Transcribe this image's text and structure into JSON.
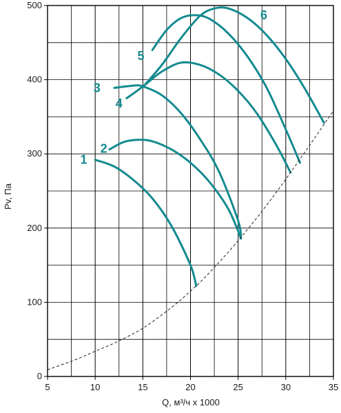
{
  "chart_data": {
    "type": "line",
    "xlabel": "Q, м³/ч х 1000",
    "ylabel": "Pv, Па",
    "xlim": [
      5,
      35
    ],
    "ylim": [
      0,
      500
    ],
    "xticks": [
      5,
      10,
      15,
      20,
      25,
      30,
      35
    ],
    "yticks": [
      0,
      100,
      200,
      300,
      400,
      500
    ],
    "grid": true,
    "colors": {
      "curves": "#138a8f",
      "system": "#222222",
      "grid": "#000000"
    },
    "series": [
      {
        "label": "1",
        "x": [
          10,
          12,
          14,
          16,
          18,
          20,
          20.6
        ],
        "y": [
          292,
          283,
          265,
          240,
          203,
          150,
          122
        ]
      },
      {
        "label": "2",
        "x": [
          11.5,
          13,
          14.5,
          16,
          18,
          20,
          22,
          24,
          25.3
        ],
        "y": [
          306,
          316,
          319,
          317,
          306,
          288,
          262,
          225,
          186
        ]
      },
      {
        "label": "3",
        "x": [
          12,
          14,
          15,
          17,
          19,
          21,
          23,
          25,
          25.3
        ],
        "y": [
          389,
          392,
          391,
          379,
          355,
          320,
          276,
          210,
          186
        ]
      },
      {
        "label": "4",
        "x": [
          13.3,
          14.5,
          15.5,
          17,
          19,
          21,
          23,
          25,
          27,
          29,
          30.5
        ],
        "y": [
          375,
          386,
          396,
          411,
          423,
          420,
          407,
          385,
          354,
          312,
          275
        ]
      },
      {
        "label": "5",
        "x": [
          16,
          17.5,
          19,
          20.5,
          22,
          24,
          26,
          28,
          30,
          31.5
        ],
        "y": [
          440,
          467,
          483,
          487,
          482,
          462,
          431,
          389,
          333,
          288
        ]
      },
      {
        "label": "6",
        "x": [
          15,
          17,
          19,
          21,
          22.5,
          24,
          26,
          28,
          30,
          32,
          34
        ],
        "y": [
          390,
          420,
          456,
          486,
          496,
          496,
          483,
          460,
          428,
          388,
          342
        ]
      },
      {
        "label": "system",
        "style": "dashed",
        "x": [
          5,
          8,
          10,
          12,
          15,
          18,
          20,
          22,
          25,
          28,
          31,
          35
        ],
        "y": [
          9,
          23,
          34,
          45,
          65,
          93,
          115,
          140,
          183,
          231,
          284,
          358
        ]
      }
    ],
    "labels": [
      {
        "text": "1",
        "x": 8.8,
        "y": 291
      },
      {
        "text": "2",
        "x": 10.9,
        "y": 306
      },
      {
        "text": "3",
        "x": 10.2,
        "y": 388
      },
      {
        "text": "4",
        "x": 12.5,
        "y": 367
      },
      {
        "text": "5",
        "x": 14.8,
        "y": 431
      },
      {
        "text": "6",
        "x": 27.7,
        "y": 486
      }
    ]
  }
}
